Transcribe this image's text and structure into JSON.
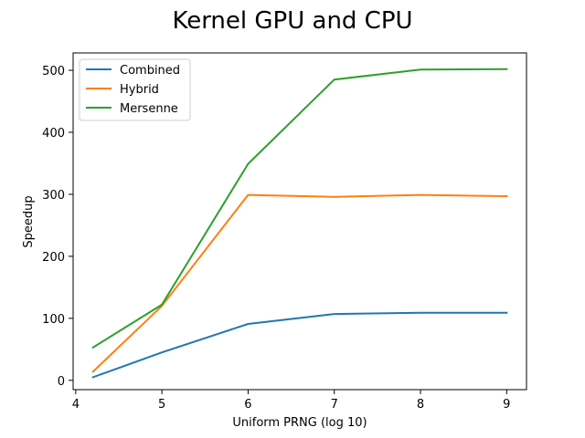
{
  "chart_data": {
    "type": "line",
    "title": "Kernel GPU and CPU",
    "xlabel": "Uniform PRNG (log 10)",
    "ylabel": "Speedup",
    "xlim": [
      3.97,
      9.23
    ],
    "ylim": [
      -15,
      528
    ],
    "xticks": [
      4,
      5,
      6,
      7,
      8,
      9
    ],
    "yticks": [
      0,
      100,
      200,
      300,
      400,
      500
    ],
    "grid": false,
    "legend_position": "top-left",
    "series": [
      {
        "name": "Combined",
        "color": "#1f77b4",
        "x": [
          4.2,
          5,
          6,
          7,
          8,
          9
        ],
        "y": [
          5,
          45,
          91,
          107,
          109,
          109
        ]
      },
      {
        "name": "Hybrid",
        "color": "#ff7f0e",
        "x": [
          4.2,
          5,
          6,
          7,
          8,
          9
        ],
        "y": [
          14,
          120,
          299,
          296,
          299,
          297
        ]
      },
      {
        "name": "Mersenne",
        "color": "#2ca02c",
        "x": [
          4.2,
          5,
          6,
          7,
          8,
          9
        ],
        "y": [
          53,
          122,
          349,
          485,
          501,
          502
        ]
      }
    ]
  }
}
